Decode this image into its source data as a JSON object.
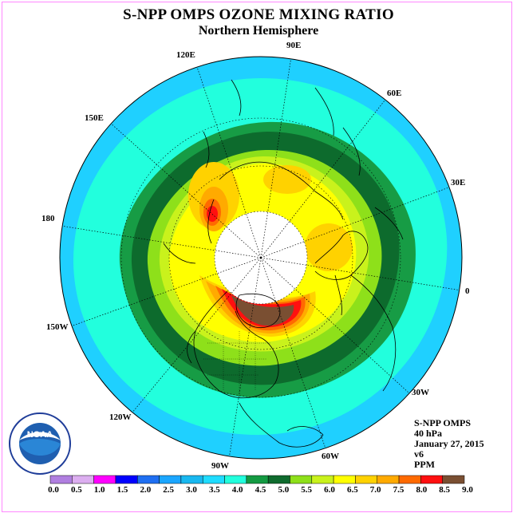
{
  "title": "S-NPP OMPS OZONE MIXING RATIO",
  "subtitle": "Northern Hemisphere",
  "longitude_labels": {
    "lon_90e": "90E",
    "lon_120e": "120E",
    "lon_60e": "60E",
    "lon_150e": "150E",
    "lon_30e": "30E",
    "lon_180": "180",
    "lon_0": "0",
    "lon_150w": "150W",
    "lon_30w": "30W",
    "lon_120w": "120W",
    "lon_60w": "60W",
    "lon_90w": "90W"
  },
  "info": {
    "instrument": "S-NPP OMPS",
    "level": "40 hPa",
    "date": "January 27, 2015",
    "version": "v6",
    "units": "PPM"
  },
  "logo": {
    "text": "NOAA",
    "ring_text": "NATIONAL OCEANIC AND ATMOSPHERIC ADMINISTRATION U.S. DEPARTMENT OF COMMERCE"
  },
  "colorbar": {
    "labels": [
      "0.0",
      "0.5",
      "1.0",
      "1.5",
      "2.0",
      "2.5",
      "3.0",
      "3.5",
      "4.0",
      "4.5",
      "5.0",
      "5.5",
      "6.0",
      "6.5",
      "7.0",
      "7.5",
      "8.0",
      "8.5",
      "9.0"
    ],
    "colors": [
      "#b07fe0",
      "#dcaef0",
      "#ff00ff",
      "#0000ff",
      "#1f6ff2",
      "#1ba6ff",
      "#19b8f0",
      "#1fdcff",
      "#22ffdd",
      "#149a42",
      "#0f6b2e",
      "#8ee01a",
      "#c9f21c",
      "#ffff00",
      "#ffd200",
      "#ffaa00",
      "#ff6a00",
      "#ff1010",
      "#7a4f32"
    ]
  },
  "map_colors": {
    "band_3_5": "#1fd0ff",
    "band_4_0": "#22ffdd",
    "band_4_5": "#179c45",
    "band_5_0": "#0d6b2d",
    "band_5_5": "#8ee01a",
    "band_6_0": "#c9f21c",
    "band_6_5": "#ffff00",
    "band_7_0": "#ffd200",
    "band_7_5": "#ffaa00",
    "band_8_0": "#ff6a00",
    "band_8_5": "#ff1010",
    "band_9_0": "#7a4f32",
    "no_data": "#ffffff"
  }
}
